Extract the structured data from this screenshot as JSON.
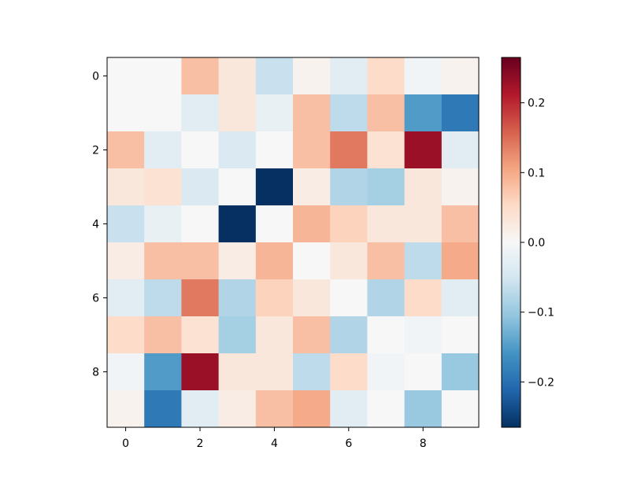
{
  "chart_data": {
    "type": "heatmap",
    "title": "",
    "xlabel": "",
    "ylabel": "",
    "x_ticks": [
      "0",
      "2",
      "4",
      "6",
      "8"
    ],
    "y_ticks": [
      "0",
      "2",
      "4",
      "6",
      "8"
    ],
    "xlim": [
      -0.5,
      9.5
    ],
    "ylim": [
      9.5,
      -0.5
    ],
    "colormap": "RdBu_r",
    "vmin": -0.265,
    "vmax": 0.265,
    "colorbar": {
      "ticks": [
        "0.2",
        "0.1",
        "0.0",
        "−0.1",
        "−0.2"
      ],
      "tick_values": [
        0.2,
        0.1,
        0.0,
        -0.1,
        -0.2
      ],
      "placement": "right"
    },
    "grid": false,
    "values": [
      [
        0.0,
        0.0,
        0.08,
        0.03,
        -0.06,
        0.01,
        -0.03,
        0.05,
        -0.01,
        0.01
      ],
      [
        0.0,
        0.0,
        -0.03,
        0.03,
        -0.02,
        0.08,
        -0.07,
        0.08,
        -0.15,
        -0.19
      ],
      [
        0.08,
        -0.03,
        0.0,
        -0.04,
        0.0,
        0.08,
        0.14,
        0.04,
        0.23,
        -0.03
      ],
      [
        0.03,
        0.04,
        -0.04,
        0.0,
        -0.265,
        0.02,
        -0.08,
        -0.09,
        0.03,
        0.01
      ],
      [
        -0.06,
        -0.02,
        0.0,
        -0.265,
        0.0,
        0.09,
        0.06,
        0.03,
        0.03,
        0.08
      ],
      [
        0.02,
        0.08,
        0.08,
        0.02,
        0.09,
        0.0,
        0.03,
        0.08,
        -0.07,
        0.1
      ],
      [
        -0.03,
        -0.07,
        0.14,
        -0.08,
        0.06,
        0.03,
        0.0,
        -0.08,
        0.05,
        -0.03
      ],
      [
        0.05,
        0.08,
        0.04,
        -0.09,
        0.03,
        0.08,
        -0.08,
        0.0,
        -0.01,
        0.0
      ],
      [
        -0.01,
        -0.15,
        0.23,
        0.03,
        0.03,
        -0.07,
        0.05,
        -0.01,
        0.0,
        -0.1
      ],
      [
        0.01,
        -0.19,
        -0.03,
        0.02,
        0.08,
        0.1,
        -0.03,
        0.0,
        -0.1,
        0.0
      ]
    ]
  }
}
